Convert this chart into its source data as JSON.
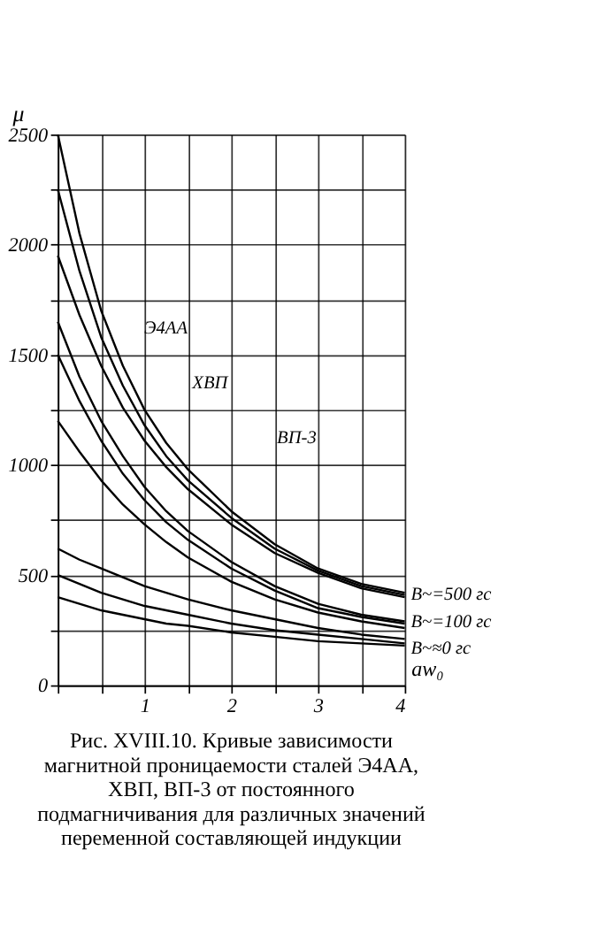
{
  "chart_data": {
    "type": "line",
    "title": "Рис. XVIII.10. Кривые зависимости магнитной проницаемости сталей Э4АА, ХВП, ВП-3 от постоянного подмагничивания для различных значений переменной составляющей индукции",
    "xlabel": "aw₀",
    "ylabel": "μ",
    "x": [
      0,
      0.25,
      0.5,
      0.75,
      1,
      1.25,
      1.5,
      2,
      2.5,
      3,
      3.5,
      4
    ],
    "series": [
      {
        "color": "#000000",
        "values": [
          2500,
          2050,
          1700,
          1450,
          1250,
          1100,
          980,
          790,
          640,
          530,
          460,
          420
        ]
      },
      {
        "color": "#000000",
        "values": [
          2250,
          1880,
          1580,
          1360,
          1180,
          1040,
          930,
          760,
          620,
          520,
          450,
          410
        ]
      },
      {
        "color": "#000000",
        "values": [
          1950,
          1680,
          1450,
          1260,
          1110,
          990,
          890,
          730,
          600,
          510,
          440,
          400
        ]
      },
      {
        "color": "#000000",
        "values": [
          1650,
          1400,
          1200,
          1040,
          900,
          790,
          700,
          560,
          450,
          370,
          320,
          290
        ]
      },
      {
        "color": "#000000",
        "values": [
          1500,
          1290,
          1110,
          960,
          840,
          740,
          660,
          530,
          430,
          350,
          310,
          280
        ]
      },
      {
        "color": "#000000",
        "values": [
          1200,
          1060,
          930,
          820,
          730,
          650,
          580,
          470,
          390,
          330,
          290,
          260
        ]
      },
      {
        "color": "#000000",
        "values": [
          620,
          570,
          530,
          490,
          450,
          420,
          390,
          340,
          300,
          260,
          230,
          210
        ]
      },
      {
        "color": "#000000",
        "values": [
          500,
          460,
          420,
          390,
          360,
          340,
          320,
          280,
          250,
          230,
          210,
          190
        ]
      },
      {
        "color": "#000000",
        "values": [
          400,
          370,
          340,
          320,
          300,
          280,
          270,
          240,
          220,
          200,
          190,
          180
        ]
      }
    ],
    "annotations": [
      "Э4АА",
      "ХВП",
      "ВП-3",
      "B~=500 гс",
      "B~=100 гс",
      "B~≈0 гс"
    ],
    "xlim": [
      0,
      4
    ],
    "xticks": [
      {
        "value": 0,
        "label": null
      },
      {
        "value": 0.5,
        "label": null
      },
      1,
      {
        "value": 1.5,
        "label": null
      },
      2,
      {
        "value": 2.5,
        "label": null
      },
      3,
      {
        "value": 3.5,
        "label": null
      },
      4
    ],
    "ylim": [
      0,
      2500
    ],
    "yticks": [
      0,
      {
        "value": 250,
        "label": null
      },
      500,
      {
        "value": 750,
        "label": null
      },
      1000,
      {
        "value": 1250,
        "label": null
      },
      1500,
      {
        "value": 1750,
        "label": null
      },
      2000,
      {
        "value": 2250,
        "label": null
      },
      2500
    ],
    "grid": true,
    "marker": "none",
    "line_style": "solid"
  }
}
